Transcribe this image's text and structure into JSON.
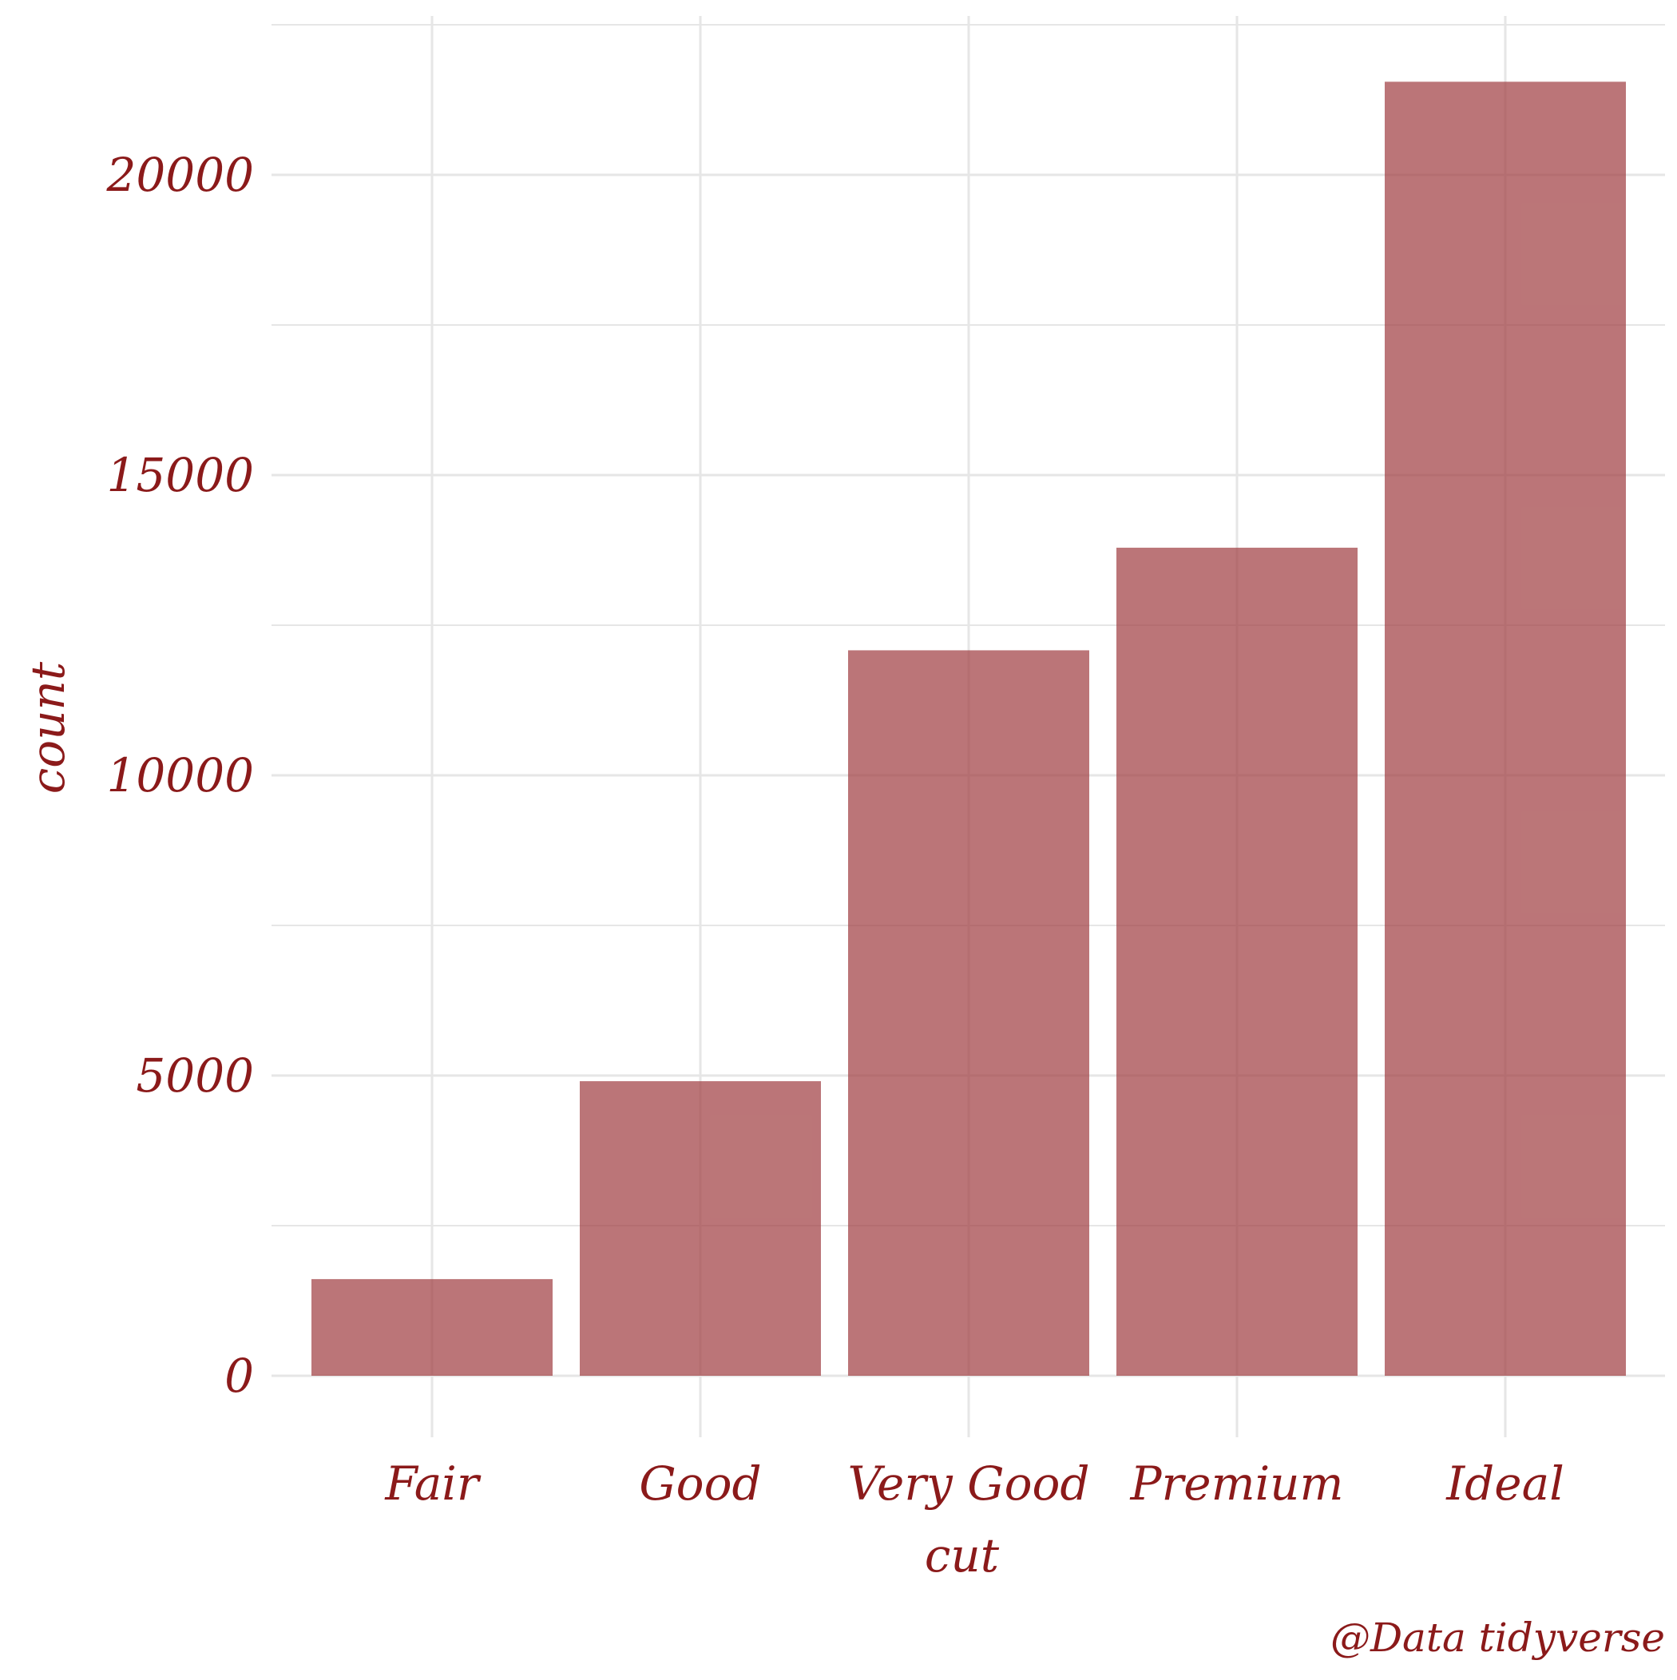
{
  "chart_data": {
    "type": "bar",
    "title": "",
    "xlabel": "cut",
    "ylabel": "count",
    "caption": "@Data tidyverse",
    "categories": [
      "Fair",
      "Good",
      "Very Good",
      "Premium",
      "Ideal"
    ],
    "values": [
      1610,
      4906,
      12082,
      13791,
      21551
    ],
    "ylim": [
      0,
      22500
    ],
    "yticks": [
      0,
      5000,
      10000,
      15000,
      20000
    ],
    "ytick_labels": [
      "0",
      "5000",
      "10000",
      "15000",
      "20000"
    ],
    "grid": true,
    "legend": "none",
    "colors": {
      "bar": "#9e3b3e",
      "text": "#8b1a1a",
      "grid": "#e6e6e6"
    }
  }
}
